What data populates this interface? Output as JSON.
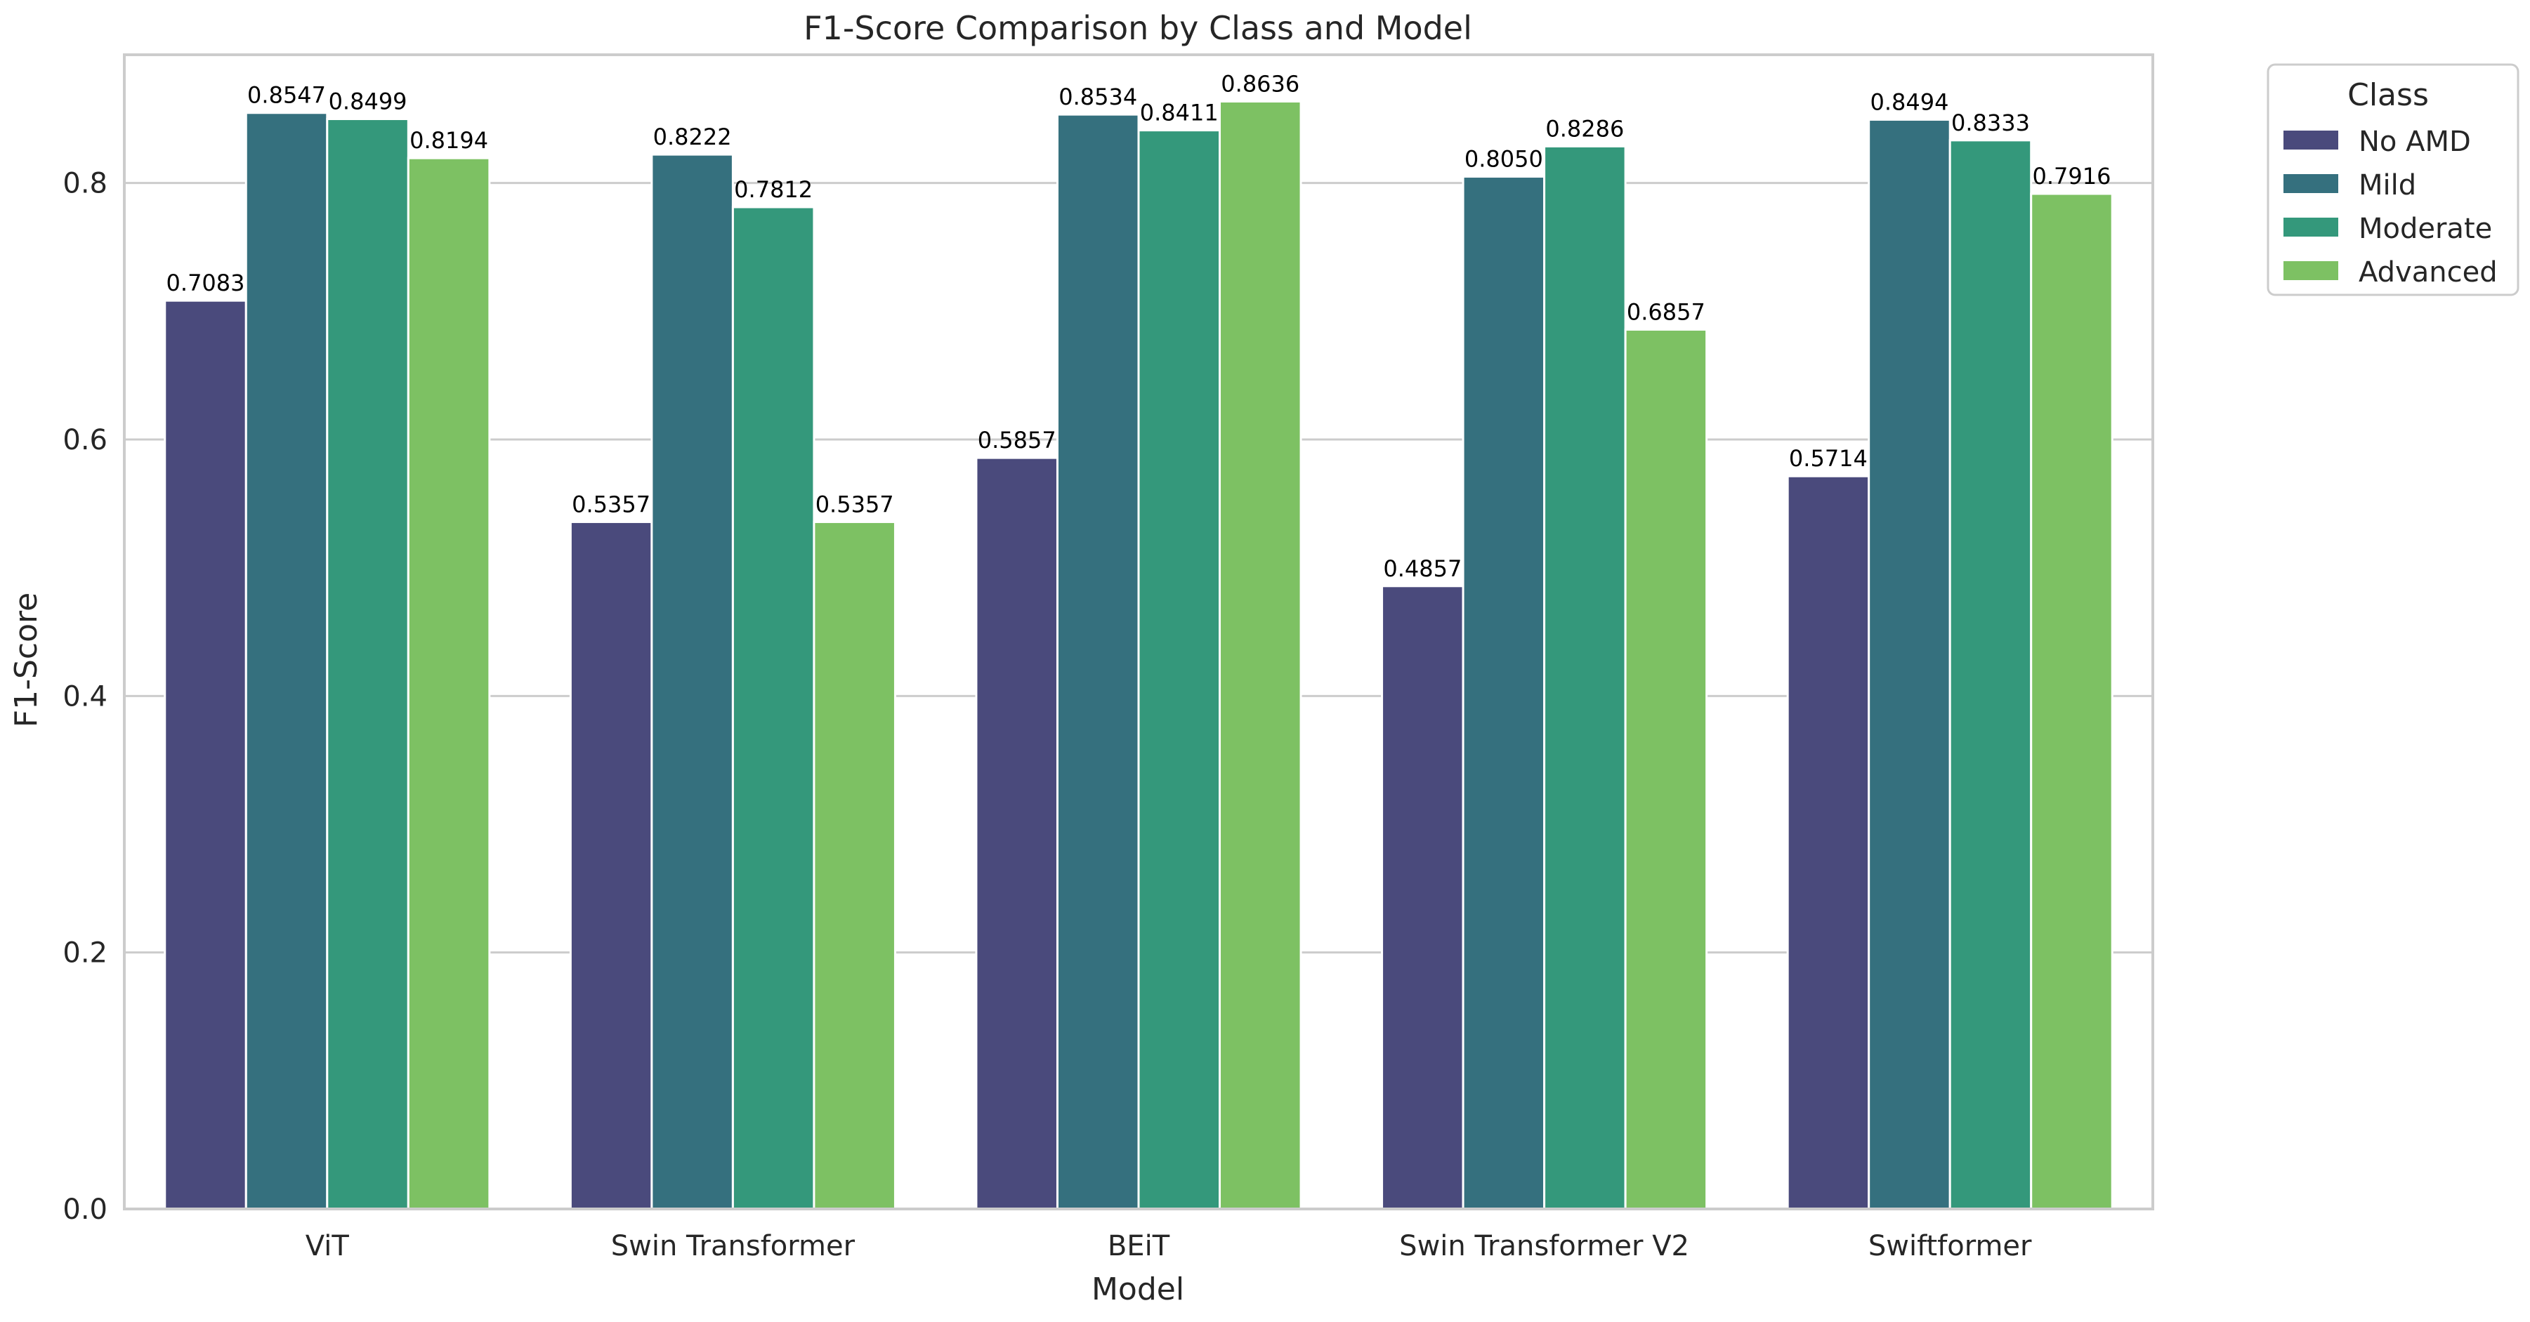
{
  "chart_data": {
    "type": "bar",
    "title": "F1-Score Comparison by Class and Model",
    "xlabel": "Model",
    "ylabel": "F1-Score",
    "ylim": [
      0,
      0.9
    ],
    "yticks": [
      0.0,
      0.2,
      0.4,
      0.6,
      0.8
    ],
    "ytick_labels": [
      "0.0",
      "0.2",
      "0.4",
      "0.6",
      "0.8"
    ],
    "grid": true,
    "legend_title": "Class",
    "legend_position": "upper-right-outside",
    "categories": [
      "ViT",
      "Swin Transformer",
      "BEiT",
      "Swin Transformer V2",
      "Swiftformer"
    ],
    "series": [
      {
        "name": "No AMD",
        "color": "#4a4a7c",
        "values": [
          0.7083,
          0.5357,
          0.5857,
          0.4857,
          0.5714
        ],
        "labels": [
          "0.7083",
          "0.5357",
          "0.5857",
          "0.4857",
          "0.5714"
        ]
      },
      {
        "name": "Mild",
        "color": "#35707e",
        "values": [
          0.8547,
          0.8222,
          0.8534,
          0.805,
          0.8494
        ],
        "labels": [
          "0.8547",
          "0.8222",
          "0.8534",
          "0.8050",
          "0.8494"
        ]
      },
      {
        "name": "Moderate",
        "color": "#34987b",
        "values": [
          0.8499,
          0.7812,
          0.8411,
          0.8286,
          0.8333
        ],
        "labels": [
          "0.8499",
          "0.7812",
          "0.8411",
          "0.8286",
          "0.8333"
        ]
      },
      {
        "name": "Advanced",
        "color": "#7dc163",
        "values": [
          0.8194,
          0.5357,
          0.8636,
          0.6857,
          0.7916
        ],
        "labels": [
          "0.8194",
          "0.5357",
          "0.8636",
          "0.6857",
          "0.7916"
        ]
      }
    ]
  },
  "style": {
    "grid_color": "#cccccc",
    "spine_color": "#cccccc",
    "bar_edge_color": "#ffffff"
  }
}
